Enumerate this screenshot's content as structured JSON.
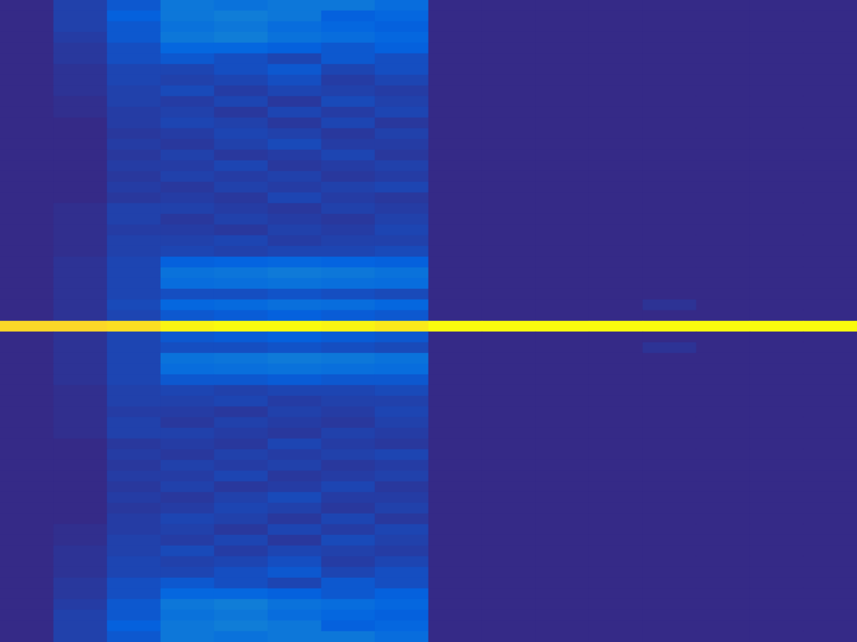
{
  "chart_data": {
    "type": "heatmap",
    "tick_labels": false,
    "color_range": [
      0,
      1
    ],
    "cells": [
      [
        0,
        0.05,
        0.1,
        0.2,
        0.18,
        0.2,
        0.2,
        0.16,
        0,
        0,
        0,
        0,
        0,
        0,
        0,
        0
      ],
      [
        0,
        0.05,
        0.12,
        0.2,
        0.22,
        0.2,
        0.12,
        0.14,
        0,
        0,
        0,
        0,
        0,
        0,
        0,
        0
      ],
      [
        0,
        0.05,
        0.1,
        0.18,
        0.2,
        0.16,
        0.14,
        0.12,
        0,
        0,
        0,
        0,
        0,
        0,
        0,
        0
      ],
      [
        0,
        0.04,
        0.1,
        0.2,
        0.22,
        0.18,
        0.16,
        0.14,
        0,
        0,
        0,
        0,
        0,
        0,
        0,
        0
      ],
      [
        0,
        0.03,
        0.08,
        0.14,
        0.14,
        0.12,
        0.1,
        0.12,
        0,
        0,
        0,
        0,
        0,
        0,
        0,
        0
      ],
      [
        0,
        0.03,
        0.08,
        0.1,
        0.08,
        0.06,
        0.1,
        0.08,
        0,
        0,
        0,
        0,
        0,
        0,
        0,
        0
      ],
      [
        0,
        0.02,
        0.06,
        0.06,
        0.08,
        0.1,
        0.06,
        0.08,
        0,
        0,
        0,
        0,
        0,
        0,
        0,
        0
      ],
      [
        0,
        0.02,
        0.06,
        0.05,
        0.06,
        0.08,
        0.04,
        0.06,
        0,
        0,
        0,
        0,
        0,
        0,
        0,
        0
      ],
      [
        0,
        0.02,
        0.05,
        0.07,
        0.04,
        0.06,
        0.05,
        0.04,
        0,
        0,
        0,
        0,
        0,
        0,
        0,
        0
      ],
      [
        0,
        0.01,
        0.05,
        0.04,
        0.06,
        0.03,
        0.07,
        0.05,
        0,
        0,
        0,
        0,
        0,
        0,
        0,
        0
      ],
      [
        0,
        0.01,
        0.04,
        0.05,
        0.03,
        0.06,
        0.04,
        0.06,
        0,
        0,
        0,
        0,
        0,
        0,
        0,
        0
      ],
      [
        0,
        0,
        0.04,
        0.06,
        0.05,
        0.03,
        0.06,
        0.03,
        0,
        0,
        0,
        0,
        0,
        0,
        0,
        0
      ],
      [
        0,
        0,
        0.03,
        0.04,
        0.06,
        0.05,
        0.03,
        0.05,
        0,
        0,
        0,
        0,
        0,
        0,
        0,
        0
      ],
      [
        0,
        0,
        0.04,
        0.03,
        0.05,
        0.07,
        0.04,
        0.04,
        0,
        0,
        0,
        0,
        0,
        0,
        0,
        0
      ],
      [
        0,
        0,
        0.03,
        0.05,
        0.03,
        0.04,
        0.06,
        0.03,
        0,
        0,
        0,
        0,
        0,
        0,
        0,
        0
      ],
      [
        0,
        0,
        0.04,
        0.04,
        0.06,
        0.03,
        0.04,
        0.05,
        0,
        0,
        0,
        0,
        0,
        0,
        0,
        0
      ],
      [
        0,
        0,
        0.03,
        0.05,
        0.04,
        0.05,
        0.03,
        0.04,
        0,
        0,
        0,
        0,
        0,
        0,
        0,
        0
      ],
      [
        0,
        0,
        0.04,
        0.03,
        0.05,
        0.04,
        0.05,
        0.06,
        0,
        0,
        0,
        0,
        0,
        0,
        0,
        0
      ],
      [
        0,
        0,
        0.03,
        0.04,
        0.03,
        0.06,
        0.04,
        0.03,
        0,
        0,
        0,
        0,
        0,
        0,
        0,
        0
      ],
      [
        0,
        0.01,
        0.05,
        0.05,
        0.04,
        0.03,
        0.05,
        0.04,
        0,
        0,
        0,
        0,
        0,
        0,
        0,
        0
      ],
      [
        0,
        0.01,
        0.05,
        0.03,
        0.05,
        0.04,
        0.03,
        0.05,
        0,
        0,
        0,
        0,
        0,
        0,
        0,
        0
      ],
      [
        0,
        0.01,
        0.04,
        0.04,
        0.03,
        0.05,
        0.04,
        0.06,
        0,
        0,
        0,
        0,
        0,
        0,
        0,
        0
      ],
      [
        0,
        0.01,
        0.05,
        0.05,
        0.06,
        0.04,
        0.05,
        0.05,
        0,
        0,
        0,
        0,
        0,
        0,
        0,
        0
      ],
      [
        0,
        0.01,
        0.05,
        0.06,
        0.05,
        0.06,
        0.06,
        0.07,
        0,
        0,
        0,
        0,
        0,
        0,
        0,
        0
      ],
      [
        0,
        0.02,
        0.06,
        0.12,
        0.13,
        0.14,
        0.13,
        0.12,
        0,
        0,
        0,
        0,
        0,
        0,
        0,
        0
      ],
      [
        0,
        0.02,
        0.06,
        0.18,
        0.19,
        0.21,
        0.2,
        0.18,
        0,
        0,
        0,
        0,
        0,
        0,
        0,
        0
      ],
      [
        0,
        0.02,
        0.06,
        0.16,
        0.17,
        0.18,
        0.17,
        0.16,
        0,
        0,
        0,
        0,
        0,
        0,
        0,
        0
      ],
      [
        0,
        0.02,
        0.06,
        0.08,
        0.08,
        0.09,
        0.08,
        0.07,
        0,
        0,
        0,
        0,
        0,
        0,
        0,
        0
      ],
      [
        0,
        0.02,
        0.07,
        0.14,
        0.15,
        0.17,
        0.16,
        0.14,
        0,
        0,
        0,
        0,
        0.02,
        0,
        0,
        0
      ],
      [
        0,
        0.02,
        0.06,
        0.1,
        0.11,
        0.12,
        0.11,
        0.1,
        0,
        0,
        0,
        0,
        0,
        0,
        0,
        0
      ],
      [
        0.9,
        0.9,
        0.92,
        0.98,
        1,
        1,
        0.98,
        0.95,
        1,
        1,
        1,
        1,
        1,
        1,
        1,
        1
      ],
      [
        0,
        0.02,
        0.06,
        0.1,
        0.11,
        0.12,
        0.11,
        0.1,
        0,
        0,
        0,
        0,
        0,
        0,
        0,
        0
      ],
      [
        0,
        0.02,
        0.06,
        0.08,
        0.08,
        0.09,
        0.08,
        0.07,
        0,
        0,
        0,
        0,
        0.02,
        0,
        0,
        0
      ],
      [
        0,
        0.02,
        0.06,
        0.18,
        0.19,
        0.21,
        0.2,
        0.18,
        0,
        0,
        0,
        0,
        0,
        0,
        0,
        0
      ],
      [
        0,
        0.02,
        0.06,
        0.16,
        0.17,
        0.18,
        0.17,
        0.16,
        0,
        0,
        0,
        0,
        0,
        0,
        0,
        0
      ],
      [
        0,
        0.02,
        0.06,
        0.1,
        0.1,
        0.11,
        0.1,
        0.1,
        0,
        0,
        0,
        0,
        0,
        0,
        0,
        0
      ],
      [
        0,
        0.01,
        0.05,
        0.06,
        0.05,
        0.06,
        0.06,
        0.07,
        0,
        0,
        0,
        0,
        0,
        0,
        0,
        0
      ],
      [
        0,
        0.01,
        0.05,
        0.05,
        0.06,
        0.04,
        0.05,
        0.05,
        0,
        0,
        0,
        0,
        0,
        0,
        0,
        0
      ],
      [
        0,
        0.01,
        0.04,
        0.04,
        0.03,
        0.05,
        0.04,
        0.06,
        0,
        0,
        0,
        0,
        0,
        0,
        0,
        0
      ],
      [
        0,
        0.01,
        0.05,
        0.03,
        0.05,
        0.04,
        0.03,
        0.05,
        0,
        0,
        0,
        0,
        0,
        0,
        0,
        0
      ],
      [
        0,
        0.01,
        0.05,
        0.05,
        0.04,
        0.03,
        0.05,
        0.04,
        0,
        0,
        0,
        0,
        0,
        0,
        0,
        0
      ],
      [
        0,
        0,
        0.03,
        0.04,
        0.03,
        0.06,
        0.04,
        0.03,
        0,
        0,
        0,
        0,
        0,
        0,
        0,
        0
      ],
      [
        0,
        0,
        0.04,
        0.03,
        0.05,
        0.04,
        0.05,
        0.06,
        0,
        0,
        0,
        0,
        0,
        0,
        0,
        0
      ],
      [
        0,
        0,
        0.03,
        0.05,
        0.04,
        0.05,
        0.03,
        0.04,
        0,
        0,
        0,
        0,
        0,
        0,
        0,
        0
      ],
      [
        0,
        0,
        0.04,
        0.04,
        0.06,
        0.03,
        0.04,
        0.05,
        0,
        0,
        0,
        0,
        0,
        0,
        0,
        0
      ],
      [
        0,
        0,
        0.03,
        0.05,
        0.03,
        0.04,
        0.06,
        0.03,
        0,
        0,
        0,
        0,
        0,
        0,
        0,
        0
      ],
      [
        0,
        0,
        0.04,
        0.03,
        0.05,
        0.07,
        0.04,
        0.04,
        0,
        0,
        0,
        0,
        0,
        0,
        0,
        0
      ],
      [
        0,
        0,
        0.03,
        0.04,
        0.06,
        0.05,
        0.03,
        0.05,
        0,
        0,
        0,
        0,
        0,
        0,
        0,
        0
      ],
      [
        0,
        0,
        0.04,
        0.06,
        0.05,
        0.03,
        0.06,
        0.03,
        0,
        0,
        0,
        0,
        0,
        0,
        0,
        0
      ],
      [
        0,
        0.01,
        0.04,
        0.05,
        0.03,
        0.06,
        0.04,
        0.06,
        0,
        0,
        0,
        0,
        0,
        0,
        0,
        0
      ],
      [
        0,
        0.01,
        0.05,
        0.04,
        0.06,
        0.03,
        0.07,
        0.05,
        0,
        0,
        0,
        0,
        0,
        0,
        0,
        0
      ],
      [
        0,
        0.02,
        0.05,
        0.07,
        0.04,
        0.06,
        0.05,
        0.04,
        0,
        0,
        0,
        0,
        0,
        0,
        0,
        0
      ],
      [
        0,
        0.02,
        0.06,
        0.05,
        0.06,
        0.08,
        0.04,
        0.06,
        0,
        0,
        0,
        0,
        0,
        0,
        0,
        0
      ],
      [
        0,
        0.02,
        0.06,
        0.06,
        0.08,
        0.1,
        0.06,
        0.08,
        0,
        0,
        0,
        0,
        0,
        0,
        0,
        0
      ],
      [
        0,
        0.03,
        0.08,
        0.1,
        0.08,
        0.06,
        0.1,
        0.08,
        0,
        0,
        0,
        0,
        0,
        0,
        0,
        0
      ],
      [
        0,
        0.03,
        0.08,
        0.14,
        0.14,
        0.12,
        0.1,
        0.12,
        0,
        0,
        0,
        0,
        0,
        0,
        0,
        0
      ],
      [
        0,
        0.04,
        0.1,
        0.2,
        0.22,
        0.18,
        0.16,
        0.14,
        0,
        0,
        0,
        0,
        0,
        0,
        0,
        0
      ],
      [
        0,
        0.05,
        0.1,
        0.18,
        0.2,
        0.16,
        0.14,
        0.12,
        0,
        0,
        0,
        0,
        0,
        0,
        0,
        0
      ],
      [
        0,
        0.05,
        0.12,
        0.2,
        0.22,
        0.2,
        0.12,
        0.14,
        0,
        0,
        0,
        0,
        0,
        0,
        0,
        0
      ],
      [
        0,
        0.05,
        0.1,
        0.2,
        0.18,
        0.2,
        0.2,
        0.16,
        0,
        0,
        0,
        0,
        0,
        0,
        0,
        0
      ]
    ]
  }
}
